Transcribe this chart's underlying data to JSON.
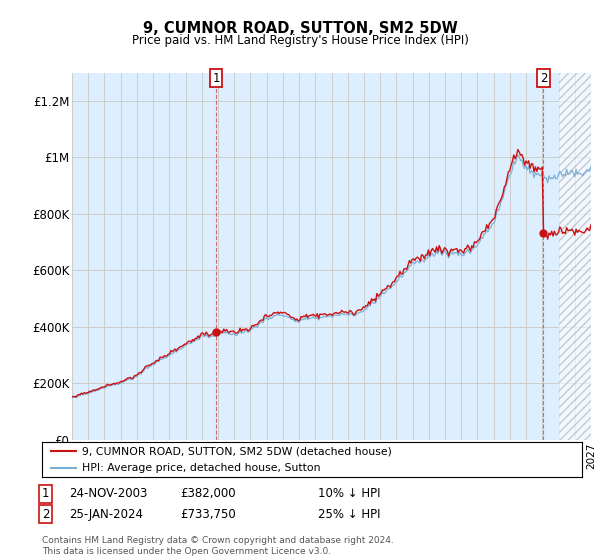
{
  "title": "9, CUMNOR ROAD, SUTTON, SM2 5DW",
  "subtitle": "Price paid vs. HM Land Registry's House Price Index (HPI)",
  "ylabel_ticks": [
    "£0",
    "£200K",
    "£400K",
    "£600K",
    "£800K",
    "£1M",
    "£1.2M"
  ],
  "ytick_values": [
    0,
    200000,
    400000,
    600000,
    800000,
    1000000,
    1200000
  ],
  "ylim": [
    0,
    1300000
  ],
  "xlim_start": 1995.0,
  "xlim_end": 2027.0,
  "hpi_color": "#7aadd4",
  "price_color": "#cc1111",
  "marker1_x": 2003.9,
  "marker1_y": 382000,
  "marker2_x": 2024.07,
  "marker2_y": 733750,
  "grid_color": "#cccccc",
  "bg_color": "#ffffff",
  "plot_bg_color": "#ddeeff",
  "hatch_start": 2025.0,
  "legend_entries": [
    "9, CUMNOR ROAD, SUTTON, SM2 5DW (detached house)",
    "HPI: Average price, detached house, Sutton"
  ],
  "footnote1_num": "1",
  "footnote1_date": "24-NOV-2003",
  "footnote1_price": "£382,000",
  "footnote1_hpi": "10% ↓ HPI",
  "footnote2_num": "2",
  "footnote2_date": "25-JAN-2024",
  "footnote2_price": "£733,750",
  "footnote2_hpi": "25% ↓ HPI",
  "copyright": "Contains HM Land Registry data © Crown copyright and database right 2024.\nThis data is licensed under the Open Government Licence v3.0."
}
